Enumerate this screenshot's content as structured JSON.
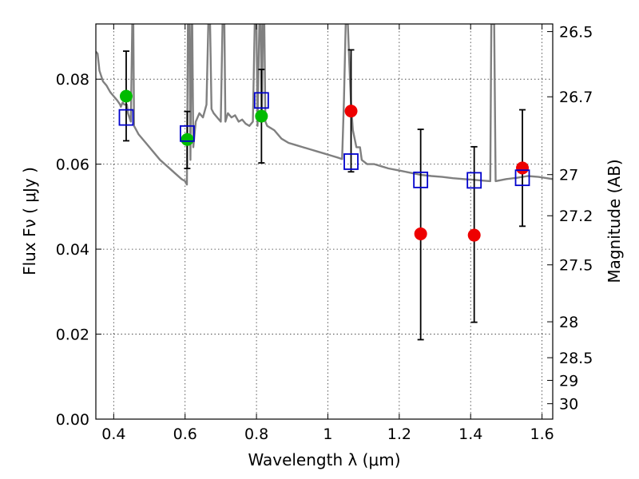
{
  "chart_data": {
    "type": "scatter",
    "xlabel": "Wavelength  λ (μm)",
    "ylabel": "Flux  Fν  ( μJy )",
    "ylabel_right": "Magnitude (AB)",
    "xlim": [
      0.35,
      1.63
    ],
    "ylim": [
      0.0,
      0.093
    ],
    "grid": true,
    "x_ticks": [
      {
        "value": 0.4,
        "label": "0.4"
      },
      {
        "value": 0.6,
        "label": "0.6"
      },
      {
        "value": 0.8,
        "label": "0.8"
      },
      {
        "value": 1.0,
        "label": "1"
      },
      {
        "value": 1.2,
        "label": "1.2"
      },
      {
        "value": 1.4,
        "label": "1.4"
      },
      {
        "value": 1.6,
        "label": "1.6"
      }
    ],
    "y_ticks": [
      {
        "value": 0.0,
        "label": "0.00"
      },
      {
        "value": 0.02,
        "label": "0.02"
      },
      {
        "value": 0.04,
        "label": "0.04"
      },
      {
        "value": 0.06,
        "label": "0.06"
      },
      {
        "value": 0.08,
        "label": "0.08"
      }
    ],
    "right_ticks": [
      {
        "value": 26.5,
        "label": "26.5"
      },
      {
        "value": 26.7,
        "label": "26.7"
      },
      {
        "value": 27.0,
        "label": "27"
      },
      {
        "value": 27.2,
        "label": "27.2"
      },
      {
        "value": 27.5,
        "label": "27.5"
      },
      {
        "value": 28.0,
        "label": "28"
      },
      {
        "value": 28.5,
        "label": "28.5"
      },
      {
        "value": 29.0,
        "label": "29"
      },
      {
        "value": 30.0,
        "label": "30"
      }
    ],
    "series": [
      {
        "kind": "errorbar",
        "color": "#000000",
        "points": [
          {
            "x": 0.435,
            "y": 0.076,
            "lo": 0.0655,
            "hi": 0.0866
          },
          {
            "x": 0.606,
            "y": 0.0658,
            "lo": 0.059,
            "hi": 0.0724
          },
          {
            "x": 0.814,
            "y": 0.0713,
            "lo": 0.0603,
            "hi": 0.0823
          },
          {
            "x": 1.065,
            "y": 0.0725,
            "lo": 0.0582,
            "hi": 0.0869
          },
          {
            "x": 1.26,
            "y": 0.0436,
            "lo": 0.0187,
            "hi": 0.0682
          },
          {
            "x": 1.41,
            "y": 0.0433,
            "lo": 0.0228,
            "hi": 0.0641
          },
          {
            "x": 1.545,
            "y": 0.0591,
            "lo": 0.0454,
            "hi": 0.0728
          }
        ]
      },
      {
        "kind": "points",
        "marker": "circle",
        "color": "#00bb00",
        "points": [
          {
            "x": 0.435,
            "y": 0.076
          },
          {
            "x": 0.606,
            "y": 0.0658
          },
          {
            "x": 0.814,
            "y": 0.0713
          }
        ]
      },
      {
        "kind": "points",
        "marker": "circle",
        "color": "#ee0000",
        "points": [
          {
            "x": 1.065,
            "y": 0.0725
          },
          {
            "x": 1.26,
            "y": 0.0436
          },
          {
            "x": 1.41,
            "y": 0.0433
          },
          {
            "x": 1.545,
            "y": 0.0591
          }
        ]
      },
      {
        "kind": "points",
        "marker": "open-square",
        "color": "#0000cc",
        "points": [
          {
            "x": 0.435,
            "y": 0.071
          },
          {
            "x": 0.606,
            "y": 0.0672
          },
          {
            "x": 0.814,
            "y": 0.075
          },
          {
            "x": 1.065,
            "y": 0.0606
          },
          {
            "x": 1.26,
            "y": 0.0563
          },
          {
            "x": 1.41,
            "y": 0.0562
          },
          {
            "x": 1.545,
            "y": 0.0568
          }
        ]
      },
      {
        "kind": "line",
        "color": "#808080",
        "points": [
          [
            0.35,
            0.0865
          ],
          [
            0.355,
            0.086
          ],
          [
            0.36,
            0.082
          ],
          [
            0.37,
            0.0795
          ],
          [
            0.38,
            0.0785
          ],
          [
            0.39,
            0.077
          ],
          [
            0.4,
            0.076
          ],
          [
            0.41,
            0.075
          ],
          [
            0.418,
            0.074
          ],
          [
            0.42,
            0.0735
          ],
          [
            0.425,
            0.0745
          ],
          [
            0.43,
            0.074
          ],
          [
            0.437,
            0.074
          ],
          [
            0.44,
            0.072
          ],
          [
            0.448,
            0.07
          ],
          [
            0.452,
            0.093
          ],
          [
            0.455,
            0.093
          ],
          [
            0.457,
            0.069
          ],
          [
            0.47,
            0.067
          ],
          [
            0.49,
            0.065
          ],
          [
            0.51,
            0.063
          ],
          [
            0.53,
            0.061
          ],
          [
            0.55,
            0.0595
          ],
          [
            0.57,
            0.058
          ],
          [
            0.59,
            0.0565
          ],
          [
            0.6,
            0.056
          ],
          [
            0.605,
            0.0552
          ],
          [
            0.608,
            0.093
          ],
          [
            0.612,
            0.093
          ],
          [
            0.615,
            0.061
          ],
          [
            0.618,
            0.093
          ],
          [
            0.62,
            0.093
          ],
          [
            0.623,
            0.064
          ],
          [
            0.63,
            0.07
          ],
          [
            0.64,
            0.072
          ],
          [
            0.65,
            0.071
          ],
          [
            0.66,
            0.074
          ],
          [
            0.665,
            0.093
          ],
          [
            0.67,
            0.093
          ],
          [
            0.674,
            0.073
          ],
          [
            0.68,
            0.072
          ],
          [
            0.69,
            0.071
          ],
          [
            0.7,
            0.07
          ],
          [
            0.705,
            0.093
          ],
          [
            0.71,
            0.093
          ],
          [
            0.713,
            0.07
          ],
          [
            0.72,
            0.072
          ],
          [
            0.73,
            0.071
          ],
          [
            0.74,
            0.0715
          ],
          [
            0.75,
            0.07
          ],
          [
            0.76,
            0.0705
          ],
          [
            0.77,
            0.0695
          ],
          [
            0.78,
            0.069
          ],
          [
            0.79,
            0.07
          ],
          [
            0.795,
            0.093
          ],
          [
            0.8,
            0.093
          ],
          [
            0.803,
            0.069
          ],
          [
            0.808,
            0.093
          ],
          [
            0.812,
            0.093
          ],
          [
            0.815,
            0.07
          ],
          [
            0.818,
            0.093
          ],
          [
            0.822,
            0.093
          ],
          [
            0.825,
            0.07
          ],
          [
            0.83,
            0.069
          ],
          [
            0.85,
            0.068
          ],
          [
            0.87,
            0.066
          ],
          [
            0.89,
            0.065
          ],
          [
            0.91,
            0.0645
          ],
          [
            0.93,
            0.064
          ],
          [
            0.95,
            0.0635
          ],
          [
            0.97,
            0.063
          ],
          [
            0.99,
            0.0625
          ],
          [
            1.01,
            0.062
          ],
          [
            1.03,
            0.0615
          ],
          [
            1.04,
            0.0612
          ],
          [
            1.045,
            0.075
          ],
          [
            1.05,
            0.093
          ],
          [
            1.056,
            0.093
          ],
          [
            1.06,
            0.084
          ],
          [
            1.065,
            0.074
          ],
          [
            1.07,
            0.068
          ],
          [
            1.08,
            0.064
          ],
          [
            1.09,
            0.064
          ],
          [
            1.095,
            0.061
          ],
          [
            1.11,
            0.06
          ],
          [
            1.13,
            0.06
          ],
          [
            1.15,
            0.0595
          ],
          [
            1.17,
            0.059
          ],
          [
            1.2,
            0.0585
          ],
          [
            1.23,
            0.058
          ],
          [
            1.26,
            0.0575
          ],
          [
            1.29,
            0.0572
          ],
          [
            1.32,
            0.057
          ],
          [
            1.35,
            0.0567
          ],
          [
            1.38,
            0.0565
          ],
          [
            1.41,
            0.0563
          ],
          [
            1.44,
            0.0561
          ],
          [
            1.455,
            0.056
          ],
          [
            1.458,
            0.093
          ],
          [
            1.466,
            0.093
          ],
          [
            1.47,
            0.056
          ],
          [
            1.5,
            0.0565
          ],
          [
            1.53,
            0.0568
          ],
          [
            1.56,
            0.0572
          ],
          [
            1.59,
            0.057
          ],
          [
            1.63,
            0.0565
          ]
        ]
      }
    ]
  }
}
